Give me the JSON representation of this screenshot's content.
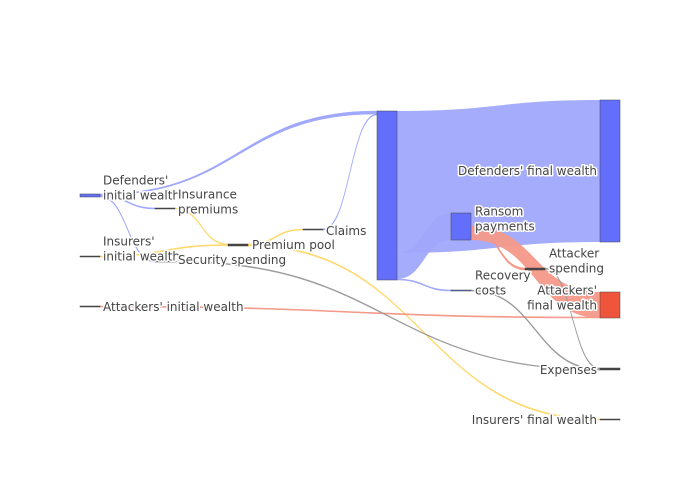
{
  "chart_data": {
    "type": "sankey",
    "colors": {
      "defender": "#636efa",
      "defender_link": "#a0a8fb",
      "insurer_link": "#ffd86a",
      "attacker": "#ef553b",
      "attacker_link": "#f4998a",
      "neutral_link": "#9a9a9a",
      "node_border": "#444444"
    },
    "nodes": [
      {
        "id": "def_init",
        "label_lines": [
          "Defenders'",
          "initial wealth"
        ],
        "color": "defender"
      },
      {
        "id": "ins_init",
        "label_lines": [
          "Insurers'",
          "initial wealth"
        ],
        "color": "neutral"
      },
      {
        "id": "att_init",
        "label_lines": [
          "Attackers' initial wealth"
        ],
        "color": "neutral"
      },
      {
        "id": "ins_prem",
        "label_lines": [
          "Insurance",
          "premiums"
        ],
        "color": "neutral"
      },
      {
        "id": "sec_spend",
        "label_lines": [
          "Security spending"
        ],
        "color": "neutral"
      },
      {
        "id": "prem_pool",
        "label_lines": [
          "Premium pool"
        ],
        "color": "neutral"
      },
      {
        "id": "claims",
        "label_lines": [
          "Claims"
        ],
        "color": "neutral"
      },
      {
        "id": "def_hub",
        "label_lines": [
          ""
        ],
        "color": "defender"
      },
      {
        "id": "ransom",
        "label_lines": [
          "Ransom",
          "payments"
        ],
        "color": "defender"
      },
      {
        "id": "recovery",
        "label_lines": [
          "Recovery",
          "costs"
        ],
        "color": "defender"
      },
      {
        "id": "att_spend",
        "label_lines": [
          "Attacker",
          "spending"
        ],
        "color": "neutral"
      },
      {
        "id": "def_final",
        "label_lines": [
          "Defenders' final wealth"
        ],
        "color": "defender"
      },
      {
        "id": "att_final",
        "label_lines": [
          "Attackers'",
          "final wealth"
        ],
        "color": "attacker"
      },
      {
        "id": "expenses",
        "label_lines": [
          "Expenses"
        ],
        "color": "neutral"
      },
      {
        "id": "ins_final",
        "label_lines": [
          "Insurers' final wealth"
        ],
        "color": "neutral"
      }
    ],
    "links": [
      {
        "source": "def_init",
        "target": "def_hub",
        "value": 1.0,
        "color": "defender_link"
      },
      {
        "source": "def_init",
        "target": "ins_prem",
        "value": 0.2,
        "color": "defender_link"
      },
      {
        "source": "def_init",
        "target": "sec_spend",
        "value": 0.2,
        "color": "defender_link"
      },
      {
        "source": "ins_init",
        "target": "prem_pool",
        "value": 0.2,
        "color": "insurer_link"
      },
      {
        "source": "ins_prem",
        "target": "prem_pool",
        "value": 0.2,
        "color": "insurer_link"
      },
      {
        "source": "prem_pool",
        "target": "claims",
        "value": 0.2,
        "color": "insurer_link"
      },
      {
        "source": "prem_pool",
        "target": "ins_final",
        "value": 0.2,
        "color": "insurer_link"
      },
      {
        "source": "claims",
        "target": "def_hub",
        "value": 0.2,
        "color": "defender_link"
      },
      {
        "source": "def_hub",
        "target": "def_final",
        "value": 47.0,
        "color": "defender_link"
      },
      {
        "source": "def_hub",
        "target": "ransom",
        "value": 8.0,
        "color": "defender_link"
      },
      {
        "source": "def_hub",
        "target": "recovery",
        "value": 0.2,
        "color": "defender_link"
      },
      {
        "source": "ransom",
        "target": "att_final",
        "value": 7.0,
        "color": "attacker_link"
      },
      {
        "source": "ransom",
        "target": "att_spend",
        "value": 0.4,
        "color": "attacker_link"
      },
      {
        "source": "att_init",
        "target": "att_final",
        "value": 0.2,
        "color": "attacker_link"
      },
      {
        "source": "att_spend",
        "target": "expenses",
        "value": 0.2,
        "color": "neutral_link"
      },
      {
        "source": "recovery",
        "target": "expenses",
        "value": 0.2,
        "color": "neutral_link"
      },
      {
        "source": "sec_spend",
        "target": "expenses",
        "value": 0.2,
        "color": "neutral_link"
      }
    ]
  }
}
